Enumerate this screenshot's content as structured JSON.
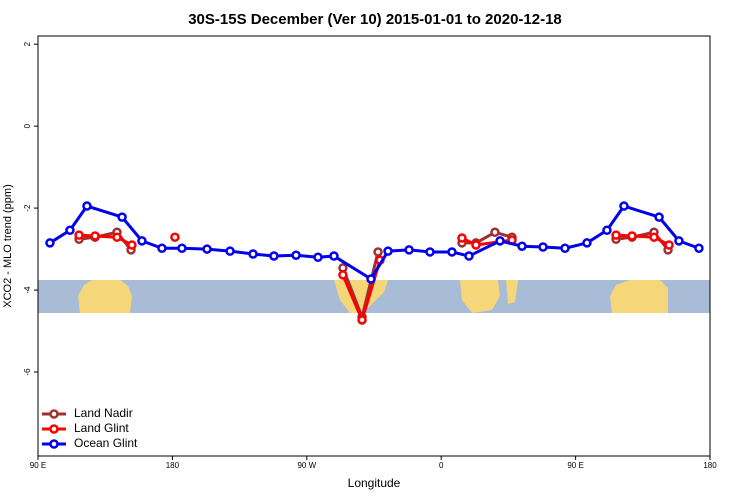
{
  "chart_data": {
    "type": "line",
    "title": "30S-15S December (Ver 10)   2015-01-01 to 2020-12-18",
    "x_label": "Longitude",
    "y_label": "XCO2 - MLO trend (ppm)",
    "xlim": [
      90,
      540
    ],
    "ylim": [
      -8.05,
      2.2
    ],
    "xticks": [
      {
        "value": 90,
        "label": "90 E"
      },
      180,
      {
        "value": 270,
        "label": "90 W"
      },
      {
        "value": 360,
        "label": "0"
      },
      {
        "value": 450,
        "label": "90 E"
      },
      {
        "value": 540,
        "label": "180"
      }
    ],
    "yticks": [
      2,
      0,
      -2,
      -4,
      -6
    ],
    "legend": "bottom-left",
    "series": [
      {
        "name": "Land Nadir",
        "color": "#a03030",
        "x": [
          117.5,
          128.2,
          142.9,
          152.3,
          null,
          294.2,
          307.0,
          317.7,
          null,
          373.9,
          383.3,
          396.0,
          407.4,
          null,
          477.1,
          487.8,
          502.5,
          511.9
        ],
        "values": [
          -2.76,
          -2.71,
          -2.59,
          -3.02,
          null,
          -3.46,
          -4.66,
          -3.07,
          null,
          -2.85,
          -2.85,
          -2.59,
          -2.71,
          null,
          -2.76,
          -2.71,
          -2.59,
          -3.02
        ]
      },
      {
        "name": "Land Glint",
        "color": "#ff0000",
        "x": [
          117.5,
          128.2,
          142.9,
          152.9,
          null,
          181.7,
          null,
          294.2,
          307.0,
          319.0,
          null,
          373.9,
          383.3,
          407.4,
          null,
          477.1,
          487.8,
          502.5,
          512.6
        ],
        "values": [
          -2.66,
          -2.68,
          -2.71,
          -2.9,
          null,
          -2.71,
          null,
          -3.63,
          -4.73,
          -3.27,
          null,
          -2.73,
          -2.9,
          -2.78,
          null,
          -2.66,
          -2.68,
          -2.71,
          -2.9
        ]
      },
      {
        "name": "Ocean Glint",
        "color": "#0000ee",
        "x": [
          98.0,
          111.4,
          122.8,
          146.3,
          159.6,
          173.0,
          186.4,
          203.2,
          218.6,
          234.0,
          248.0,
          262.8,
          277.5,
          288.2,
          313.0,
          324.4,
          338.5,
          352.5,
          367.2,
          378.6,
          399.4,
          414.1,
          428.2,
          442.9,
          457.6,
          471.0,
          482.4,
          505.9,
          519.2,
          532.6
        ],
        "values": [
          -2.85,
          -2.54,
          -1.95,
          -2.22,
          -2.8,
          -2.98,
          -2.98,
          -3.0,
          -3.05,
          -3.12,
          -3.17,
          -3.15,
          -3.2,
          -3.17,
          -3.73,
          -3.05,
          -3.02,
          -3.07,
          -3.07,
          -3.17,
          -2.8,
          -2.93,
          -2.95,
          -2.98,
          -2.85,
          -2.54,
          -1.95,
          -2.22,
          -2.8,
          -2.98
        ]
      }
    ]
  }
}
